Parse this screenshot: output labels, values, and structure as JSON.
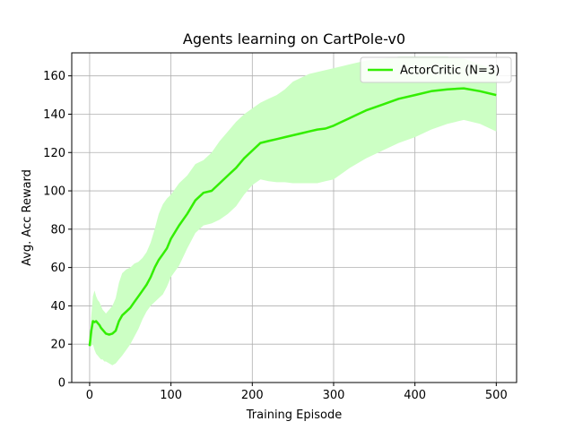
{
  "chart_data": {
    "type": "line",
    "title": "Agents learning on CartPole-v0",
    "xlabel": "Training Episode",
    "ylabel": "Avg. Acc Reward",
    "xlim": [
      -22,
      525
    ],
    "ylim": [
      0,
      172
    ],
    "xticks": [
      0,
      100,
      200,
      300,
      400,
      500
    ],
    "yticks": [
      0,
      20,
      40,
      60,
      80,
      100,
      120,
      140,
      160
    ],
    "grid": true,
    "legend_position": "top-right",
    "series": [
      {
        "name": "ActorCritic (N=3)",
        "color": "#33ee00",
        "band_color": "#ccffc4",
        "x": [
          0,
          2,
          4,
          6,
          8,
          10,
          12,
          14,
          16,
          18,
          20,
          24,
          28,
          32,
          36,
          40,
          45,
          50,
          55,
          60,
          65,
          70,
          75,
          80,
          85,
          90,
          95,
          100,
          110,
          120,
          130,
          140,
          150,
          160,
          170,
          180,
          190,
          200,
          210,
          220,
          230,
          240,
          250,
          260,
          270,
          280,
          290,
          300,
          320,
          340,
          360,
          380,
          400,
          420,
          440,
          460,
          480,
          500
        ],
        "mean": [
          19,
          27,
          32,
          31.5,
          32,
          31,
          30,
          28.5,
          27.5,
          26.5,
          25.5,
          25,
          25.5,
          27,
          32,
          35,
          37,
          39,
          42,
          45,
          48,
          51,
          55,
          60,
          64,
          67,
          70,
          75,
          82,
          88,
          95,
          99,
          100,
          104,
          108,
          112,
          117,
          121,
          125,
          126,
          127,
          128,
          129,
          130,
          131,
          132,
          132.5,
          134,
          138,
          142,
          145,
          148,
          150,
          152,
          153,
          153.5,
          152,
          150
        ],
        "upper": [
          19,
          35,
          45,
          48,
          45,
          43,
          42,
          40,
          38,
          37,
          36,
          38,
          40,
          44,
          52,
          57,
          59,
          60,
          62,
          63,
          65,
          68,
          73,
          80,
          88,
          93,
          96,
          98,
          104,
          108,
          114,
          116,
          120,
          126,
          131,
          136,
          140,
          143,
          146,
          148,
          150,
          153,
          157,
          159,
          161,
          162,
          163,
          164,
          166,
          168,
          169,
          170,
          170,
          170,
          170,
          169,
          166,
          163
        ],
        "lower": [
          19,
          19,
          20,
          17,
          15,
          14,
          13,
          12,
          12,
          11,
          11,
          10,
          9,
          10,
          12,
          14,
          17,
          20,
          24,
          28,
          33,
          37,
          40,
          42,
          44,
          46,
          50,
          55,
          61,
          70,
          78,
          82,
          83,
          85,
          88,
          92,
          98,
          103,
          106,
          105,
          104.5,
          104.5,
          104,
          104,
          104,
          104,
          105,
          106,
          112,
          117,
          121,
          125,
          128,
          132,
          135,
          137,
          135,
          131
        ]
      }
    ]
  }
}
